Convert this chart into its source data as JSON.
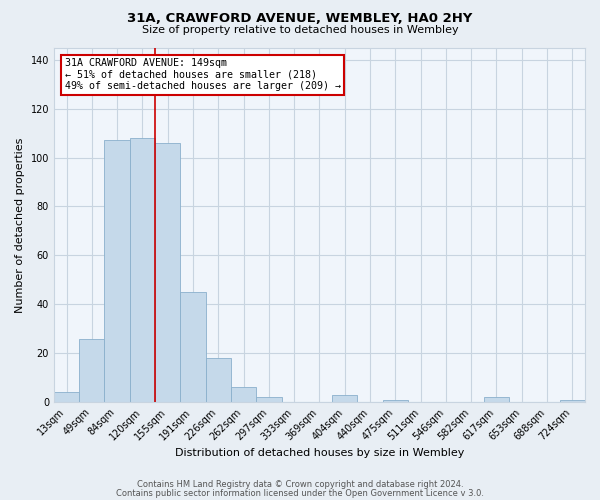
{
  "title": "31A, CRAWFORD AVENUE, WEMBLEY, HA0 2HY",
  "subtitle": "Size of property relative to detached houses in Wembley",
  "xlabel": "Distribution of detached houses by size in Wembley",
  "ylabel": "Number of detached properties",
  "footer_line1": "Contains HM Land Registry data © Crown copyright and database right 2024.",
  "footer_line2": "Contains public sector information licensed under the Open Government Licence v 3.0.",
  "bar_labels": [
    "13sqm",
    "49sqm",
    "84sqm",
    "120sqm",
    "155sqm",
    "191sqm",
    "226sqm",
    "262sqm",
    "297sqm",
    "333sqm",
    "369sqm",
    "404sqm",
    "440sqm",
    "475sqm",
    "511sqm",
    "546sqm",
    "582sqm",
    "617sqm",
    "653sqm",
    "688sqm",
    "724sqm"
  ],
  "bar_values": [
    4,
    26,
    107,
    108,
    106,
    45,
    18,
    6,
    2,
    0,
    0,
    3,
    0,
    1,
    0,
    0,
    0,
    2,
    0,
    0,
    1
  ],
  "bar_color": "#c5d9ea",
  "bar_edge_color": "#8ab0cc",
  "vertical_line_x": 3.5,
  "vertical_line_color": "#cc0000",
  "annotation_title": "31A CRAWFORD AVENUE: 149sqm",
  "annotation_line1": "← 51% of detached houses are smaller (218)",
  "annotation_line2": "49% of semi-detached houses are larger (209) →",
  "ylim": [
    0,
    145
  ],
  "yticks": [
    0,
    20,
    40,
    60,
    80,
    100,
    120,
    140
  ],
  "bg_color": "#e8eef4",
  "plot_bg_color": "#f0f5fb",
  "grid_color": "#c8d4e0",
  "title_fontsize": 9.5,
  "subtitle_fontsize": 8,
  "label_fontsize": 8,
  "tick_fontsize": 7,
  "footer_fontsize": 6
}
